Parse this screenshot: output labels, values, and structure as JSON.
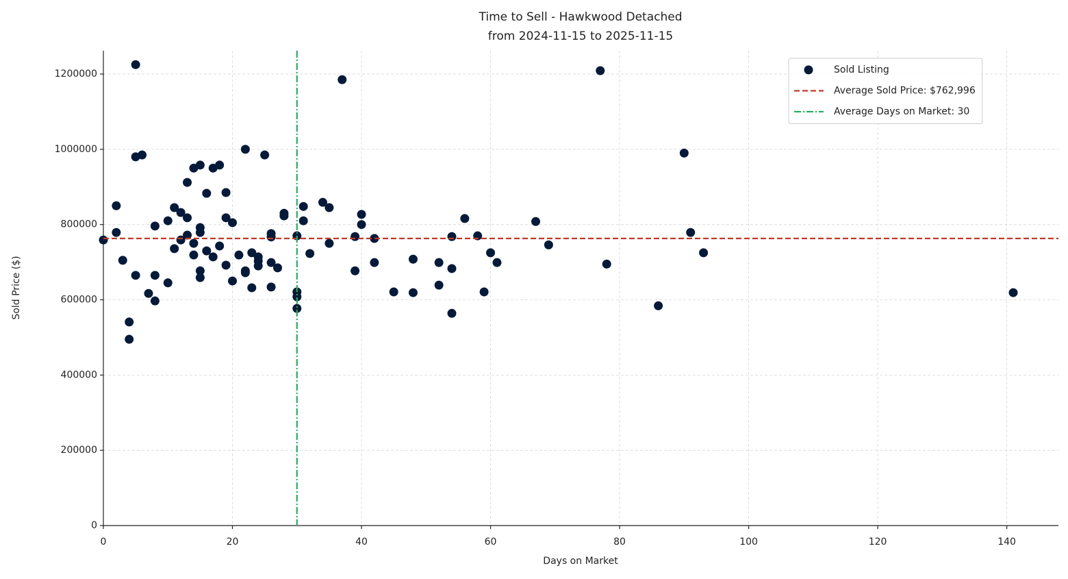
{
  "chart_data": {
    "type": "scatter",
    "title": "Time to Sell - Hawkwood Detached",
    "subtitle": "from 2024-11-15 to 2025-11-15",
    "x_label": "Days on Market",
    "y_label": "Sold Price ($)",
    "xlim": [
      0,
      148
    ],
    "ylim": [
      0,
      1262000
    ],
    "xticks": [
      0,
      20,
      40,
      60,
      80,
      100,
      120,
      140
    ],
    "yticks": [
      0,
      200000,
      400000,
      600000,
      800000,
      1000000,
      1200000
    ],
    "grid": true,
    "legend": "upper right",
    "series": [
      {
        "name": "Sold Listing",
        "color": "#051a38",
        "x": [
          0,
          2,
          2,
          3,
          4,
          4,
          5,
          5,
          5,
          6,
          7,
          8,
          8,
          8,
          10,
          10,
          11,
          11,
          12,
          12,
          13,
          13,
          13,
          14,
          14,
          14,
          15,
          15,
          15,
          15,
          15,
          16,
          16,
          17,
          17,
          18,
          18,
          19,
          19,
          19,
          20,
          20,
          21,
          22,
          22,
          22,
          23,
          23,
          24,
          24,
          24,
          25,
          26,
          26,
          26,
          26,
          27,
          28,
          28,
          30,
          30,
          30,
          30,
          31,
          31,
          32,
          34,
          35,
          35,
          37,
          39,
          39,
          40,
          40,
          42,
          42,
          45,
          48,
          48,
          52,
          52,
          54,
          54,
          54,
          56,
          58,
          59,
          60,
          61,
          67,
          69,
          77,
          78,
          86,
          90,
          91,
          93,
          141
        ],
        "values": [
          759000,
          850000,
          779000,
          705000,
          541000,
          495000,
          1225000,
          980000,
          665000,
          985000,
          617000,
          796000,
          665000,
          597000,
          810000,
          645000,
          845000,
          736000,
          832000,
          759000,
          912000,
          818000,
          772000,
          950000,
          750000,
          719000,
          958000,
          792000,
          779000,
          677000,
          659000,
          883000,
          730000,
          950000,
          714000,
          958000,
          743000,
          885000,
          818000,
          692000,
          805000,
          650000,
          719000,
          1000000,
          677000,
          672000,
          725000,
          632000,
          714000,
          703000,
          690000,
          985000,
          776000,
          767000,
          699000,
          634000,
          685000,
          830000,
          823000,
          770000,
          621000,
          608000,
          577000,
          848000,
          810000,
          723000,
          859000,
          845000,
          750000,
          1185000,
          768000,
          677000,
          827000,
          800000,
          763000,
          699000,
          621000,
          708000,
          619000,
          699000,
          639000,
          768000,
          683000,
          564000,
          816000,
          770000,
          621000,
          725000,
          699000,
          808000,
          746000,
          1209000,
          695000,
          584000,
          990000,
          779000,
          725000,
          619000
        ]
      }
    ],
    "hlines": [
      {
        "name": "Average Sold Price: $762,996",
        "value": 762996,
        "color": "#c0392b"
      }
    ],
    "vlines": [
      {
        "name": "Average Days on Market: 30",
        "value": 30,
        "color": "#27ae60"
      }
    ]
  }
}
